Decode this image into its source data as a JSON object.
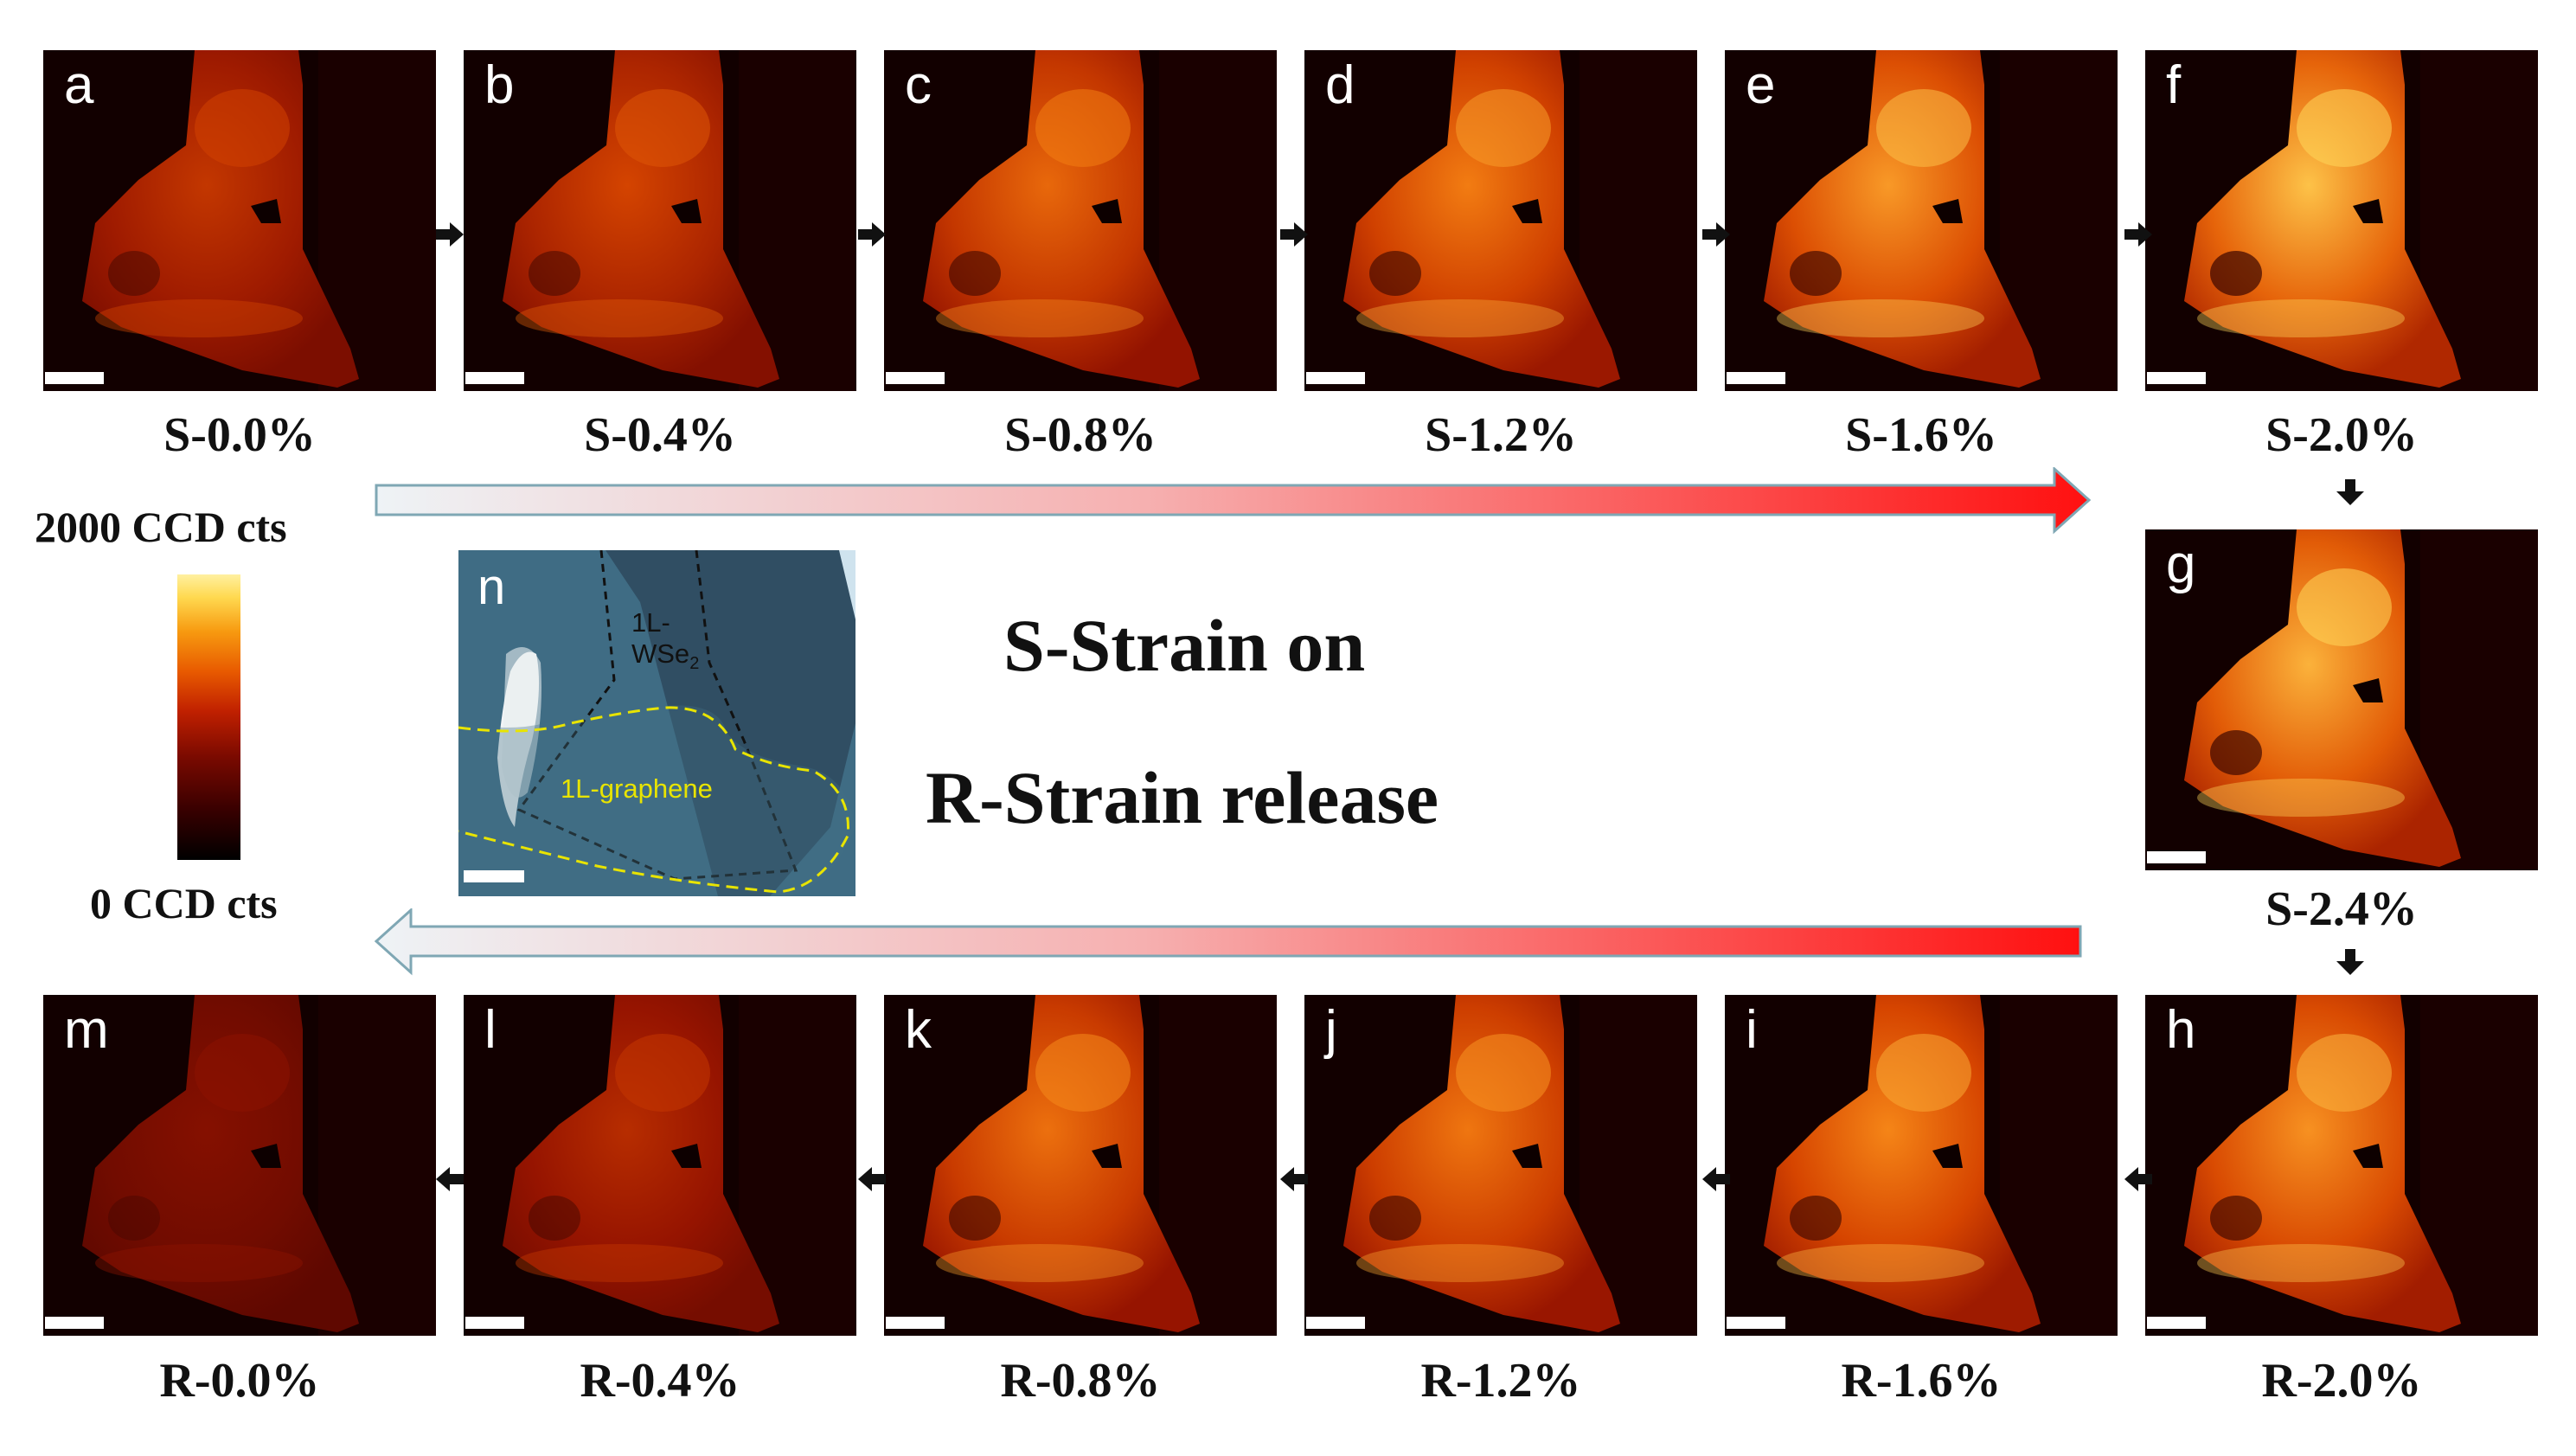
{
  "panels": [
    {
      "letter": "a",
      "label": "S-0.0%",
      "intensity": 0.55
    },
    {
      "letter": "b",
      "label": "S-0.4%",
      "intensity": 0.62
    },
    {
      "letter": "c",
      "label": "S-0.8%",
      "intensity": 0.75
    },
    {
      "letter": "d",
      "label": "S-1.2%",
      "intensity": 0.82
    },
    {
      "letter": "e",
      "label": "S-1.6%",
      "intensity": 0.9
    },
    {
      "letter": "f",
      "label": "S-2.0%",
      "intensity": 1.0
    },
    {
      "letter": "g",
      "label": "S-2.4%",
      "intensity": 0.96
    },
    {
      "letter": "h",
      "label": "R-2.0%",
      "intensity": 0.88
    },
    {
      "letter": "i",
      "label": "R-1.6%",
      "intensity": 0.85
    },
    {
      "letter": "j",
      "label": "R-1.2%",
      "intensity": 0.8
    },
    {
      "letter": "k",
      "label": "R-0.8%",
      "intensity": 0.78
    },
    {
      "letter": "l",
      "label": "R-0.4%",
      "intensity": 0.5
    },
    {
      "letter": "m",
      "label": "R-0.0%",
      "intensity": 0.3
    }
  ],
  "colorbar": {
    "max_label": "2000 CCD cts",
    "min_label": "0 CCD cts"
  },
  "inset": {
    "letter": "n",
    "wse2_line1": "1L-",
    "wse2_line2": "WSe",
    "wse2_sub": "2",
    "graphene_label": "1L-graphene"
  },
  "center": {
    "line1": "S-Strain on",
    "line2": "R-Strain release"
  }
}
